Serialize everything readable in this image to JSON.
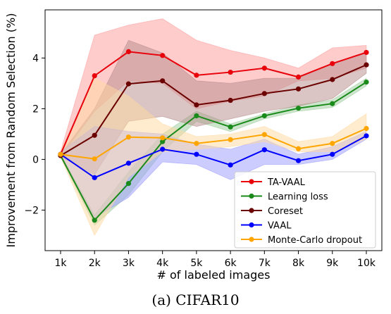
{
  "caption": "(a) CIFAR10",
  "chart_data": {
    "type": "line",
    "xlabel": "# of labeled images",
    "ylabel": "Improvement from Random Selection (%)",
    "categories": [
      "1k",
      "2k",
      "3k",
      "4k",
      "5k",
      "6k",
      "7k",
      "8k",
      "9k",
      "10k"
    ],
    "ylim": [
      -3.6,
      5.9
    ],
    "yticks": [
      -2,
      0,
      2,
      4
    ],
    "grid": false,
    "legend_position": "lower-right",
    "series": [
      {
        "name": "TA-VAAL",
        "color": "#e8000b",
        "fill": "#ff9999",
        "values": [
          0.2,
          3.3,
          4.25,
          4.1,
          3.32,
          3.44,
          3.6,
          3.25,
          3.78,
          4.22
        ],
        "lower": [
          0.1,
          1.9,
          3.1,
          3.0,
          2.0,
          2.3,
          2.5,
          3.1,
          3.2,
          3.6
        ],
        "upper": [
          0.3,
          4.9,
          5.3,
          5.55,
          4.7,
          4.3,
          4.0,
          3.6,
          4.4,
          4.5
        ]
      },
      {
        "name": "Learning loss",
        "color": "#1a8a1a",
        "fill": "#99cc99",
        "values": [
          0.15,
          -2.4,
          -0.95,
          0.7,
          1.72,
          1.28,
          1.72,
          2.02,
          2.2,
          3.05
        ],
        "lower": [
          0.1,
          -2.6,
          -1.4,
          0.3,
          1.5,
          1.1,
          1.6,
          1.9,
          2.05,
          2.9
        ],
        "upper": [
          0.2,
          -2.2,
          -0.5,
          1.0,
          1.9,
          1.4,
          1.8,
          2.15,
          2.35,
          3.2
        ]
      },
      {
        "name": "Coreset",
        "color": "#6b0000",
        "fill": "#b58a8a",
        "values": [
          0.15,
          0.95,
          2.98,
          3.1,
          2.15,
          2.33,
          2.6,
          2.78,
          3.15,
          3.73
        ],
        "lower": [
          0.1,
          -0.6,
          1.5,
          1.7,
          1.3,
          1.6,
          1.9,
          2.1,
          2.4,
          3.4
        ],
        "upper": [
          0.2,
          2.0,
          4.7,
          4.2,
          3.1,
          3.0,
          3.2,
          3.2,
          3.8,
          4.2
        ]
      },
      {
        "name": "VAAL",
        "color": "#0000ff",
        "fill": "#9999ff",
        "values": [
          0.2,
          -0.72,
          -0.15,
          0.4,
          0.2,
          -0.22,
          0.38,
          -0.05,
          0.2,
          0.93
        ],
        "lower": [
          0.1,
          -2.3,
          -1.5,
          -0.1,
          -0.2,
          -0.8,
          -0.2,
          -0.2,
          0.0,
          0.8
        ],
        "upper": [
          0.3,
          1.3,
          1.1,
          1.0,
          0.6,
          0.4,
          0.8,
          0.2,
          0.5,
          1.1
        ]
      },
      {
        "name": "Monte-Carlo dropout",
        "color": "#ffa500",
        "fill": "#ffd9a0",
        "values": [
          0.2,
          0.02,
          0.88,
          0.85,
          0.63,
          0.78,
          0.98,
          0.42,
          0.63,
          1.22
        ],
        "lower": [
          0.1,
          -3.0,
          -0.7,
          0.3,
          0.4,
          0.5,
          0.7,
          0.3,
          0.3,
          0.8
        ],
        "upper": [
          0.3,
          3.2,
          2.5,
          1.4,
          0.9,
          1.0,
          1.3,
          0.7,
          0.9,
          1.8
        ]
      }
    ]
  }
}
